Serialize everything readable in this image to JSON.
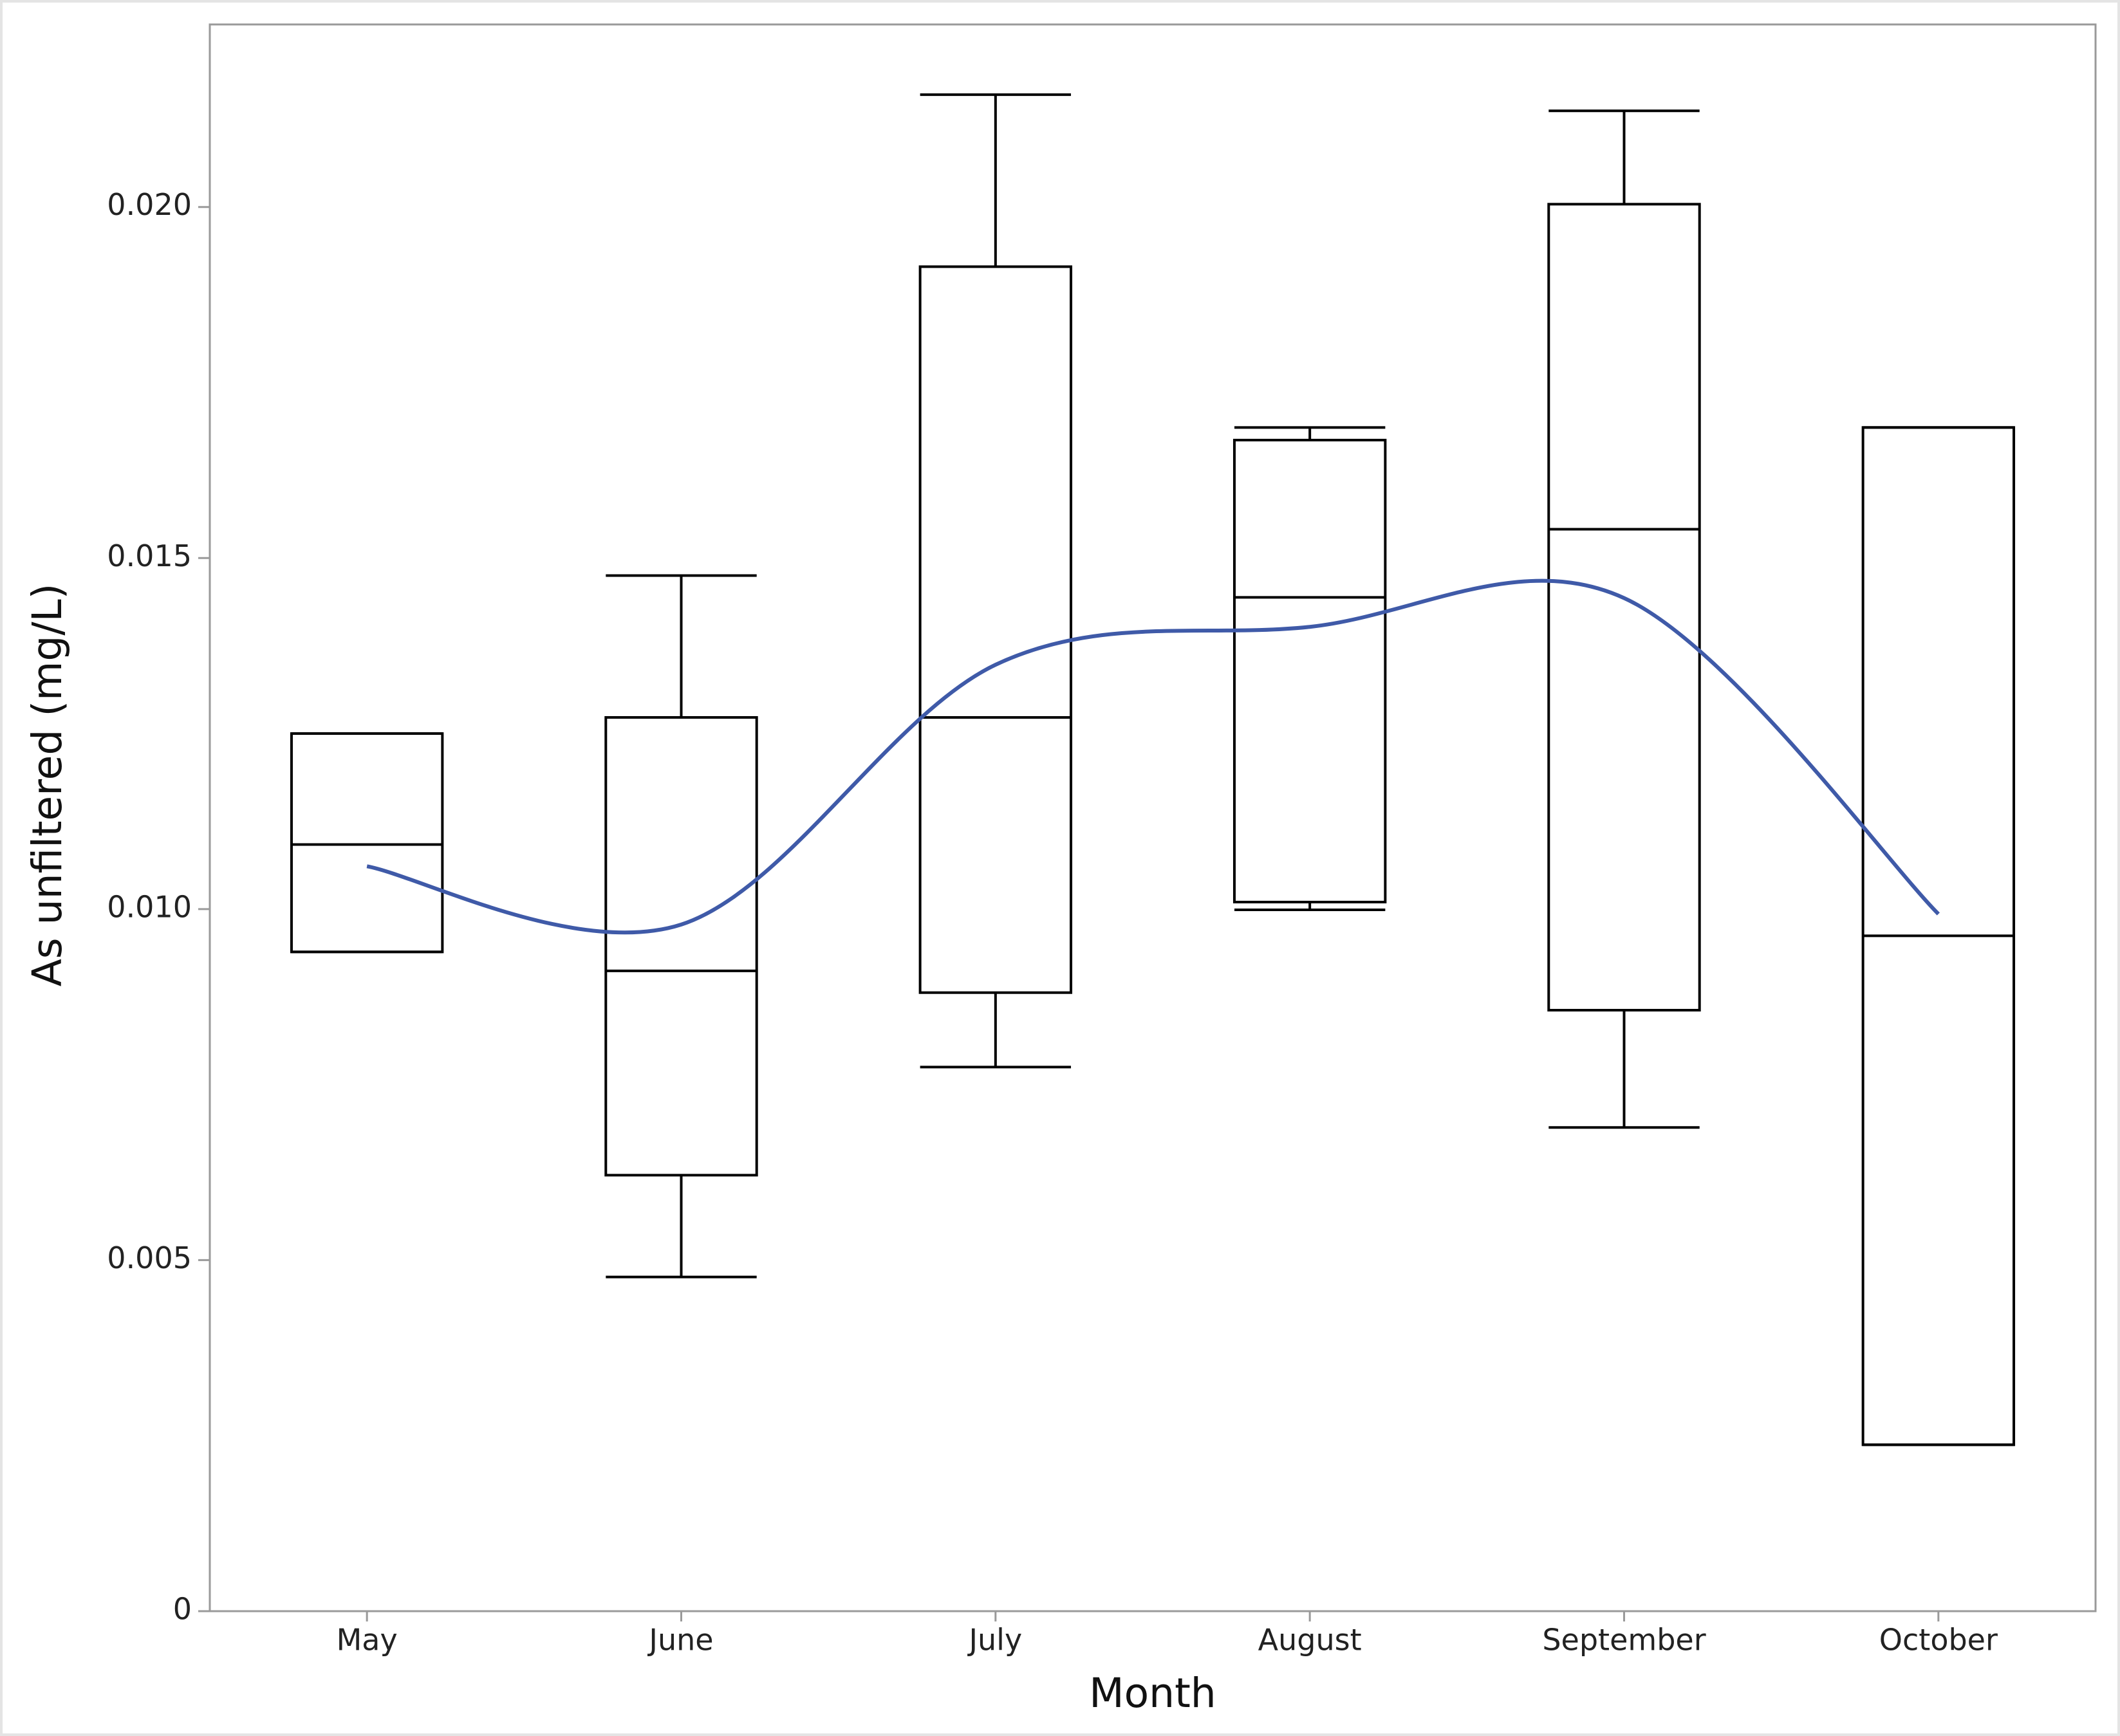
{
  "chart_data": {
    "type": "box",
    "x_label": "Month",
    "y_label": "As unfiltered (mg/L)",
    "categories": [
      "May",
      "June",
      "July",
      "August",
      "September",
      "October"
    ],
    "boxes": [
      {
        "min": 0.00939,
        "q1": 0.00939,
        "median": 0.01092,
        "q3": 0.0125,
        "max": 0.0125
      },
      {
        "min": 0.00476,
        "q1": 0.00621,
        "median": 0.00912,
        "q3": 0.01273,
        "max": 0.01475
      },
      {
        "min": 0.00775,
        "q1": 0.00881,
        "median": 0.01273,
        "q3": 0.01915,
        "max": 0.0216
      },
      {
        "min": 0.00999,
        "q1": 0.0101,
        "median": 0.01444,
        "q3": 0.01668,
        "max": 0.01686
      },
      {
        "min": 0.00689,
        "q1": 0.00856,
        "median": 0.01541,
        "q3": 0.02004,
        "max": 0.02137
      },
      {
        "min": 0.00237,
        "q1": 0.00237,
        "median": 0.00962,
        "q3": 0.01686,
        "max": 0.01686
      }
    ],
    "box_color": "#000000",
    "smoother": {
      "color": "#3f5aa8",
      "values": [
        0.01061,
        0.00978,
        0.01348,
        0.01402,
        0.01443,
        0.00993
      ]
    },
    "ylim": [
      0,
      0.0226
    ],
    "yticks": [
      0,
      0.005,
      {
        "value": 0.01,
        "label": "0.010"
      },
      0.015,
      {
        "value": 0.02,
        "label": "0.020"
      }
    ]
  }
}
